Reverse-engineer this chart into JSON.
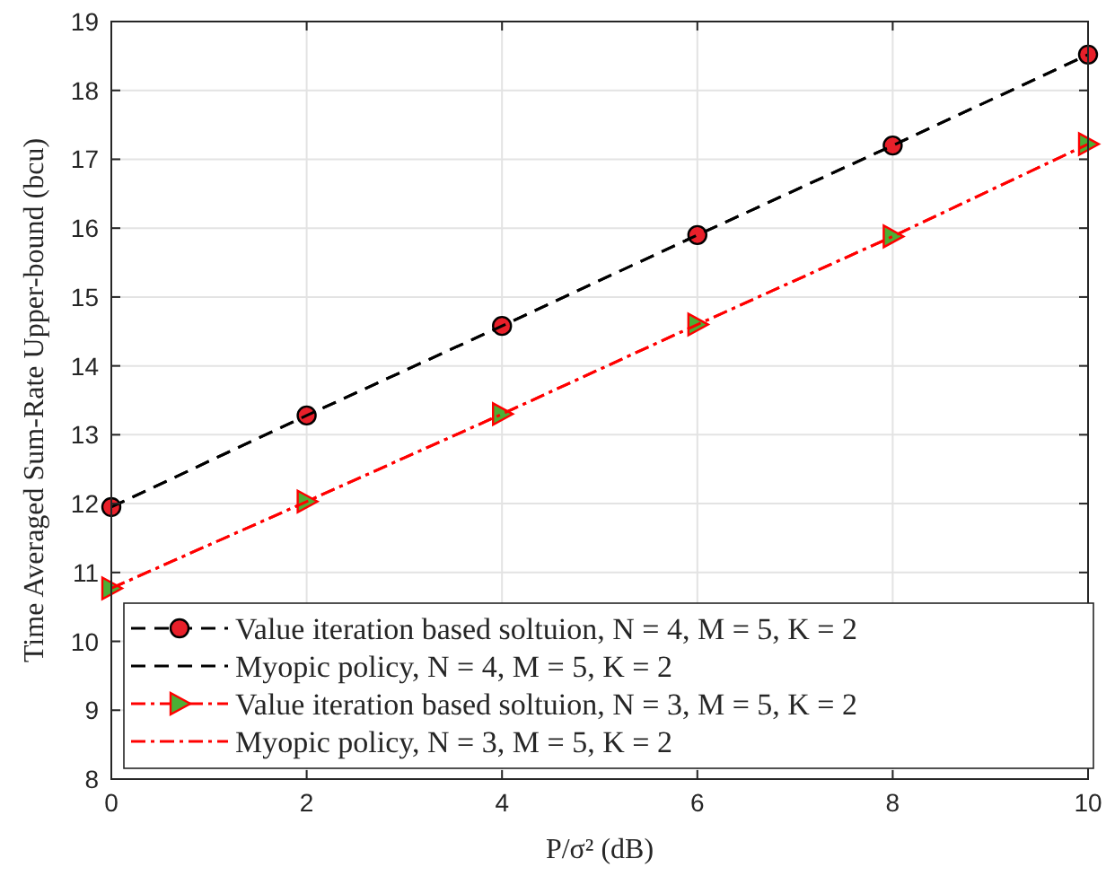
{
  "chart_data": {
    "type": "line",
    "xlabel": "P/σ² (dB)",
    "ylabel": "Time Averaged Sum-Rate Upper-bound (bcu)",
    "x": [
      0,
      2,
      4,
      6,
      8,
      10
    ],
    "xlim": [
      0,
      10
    ],
    "xticks": [
      0,
      2,
      4,
      6,
      8,
      10
    ],
    "ylim": [
      8,
      19
    ],
    "yticks": [
      8,
      9,
      10,
      11,
      12,
      13,
      14,
      15,
      16,
      17,
      18,
      19
    ],
    "grid": true,
    "legend": "bottom left",
    "series": [
      {
        "name": "Value iteration based soltuion, N = 4, M = 5, K = 2",
        "color": "#000000",
        "colors": [
          "#e8202a",
          "#e8202a",
          "#e8202a",
          "#e8202a",
          "#e8202a",
          "#e8202a"
        ],
        "marker": "circle",
        "line_style": "dashed",
        "values": [
          11.95,
          13.28,
          14.58,
          15.9,
          17.2,
          18.52
        ]
      },
      {
        "name": "Myopic policy, N = 4, M = 5, K = 2",
        "color": "#000000",
        "marker": "none",
        "line_style": "dashed",
        "values": [
          11.95,
          13.28,
          14.58,
          15.9,
          17.2,
          18.52
        ]
      },
      {
        "name": "Value iteration based soltuion, N = 3, M = 5, K = 2",
        "color": "#ff0000",
        "colors": [
          "#4caf35",
          "#4caf35",
          "#4caf35",
          "#4caf35",
          "#4caf35",
          "#4caf35"
        ],
        "marker": "triangle",
        "line_style": "dashdot",
        "values": [
          10.77,
          12.03,
          13.3,
          14.6,
          15.88,
          17.22
        ]
      },
      {
        "name": "Myopic policy, N = 3, M = 5, K = 2",
        "color": "#ff0000",
        "marker": "none",
        "line_style": "dashdot",
        "values": [
          10.77,
          12.03,
          13.3,
          14.6,
          15.88,
          17.22
        ]
      }
    ]
  }
}
